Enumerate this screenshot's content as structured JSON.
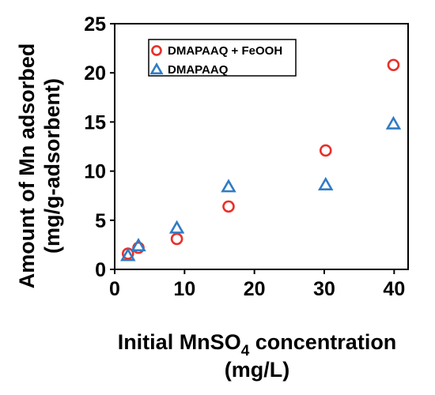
{
  "chart_data": {
    "type": "scatter",
    "xlabel_line1_prefix": "Initial MnSO",
    "xlabel_line1_subscript": "4",
    "xlabel_line1_suffix": " concentration",
    "xlabel_line2": "(mg/L)",
    "ylabel_line1": "Amount of Mn adsorbed",
    "ylabel_line2": "(mg/g-adsorbent)",
    "xlim": [
      0,
      42
    ],
    "ylim": [
      0,
      25
    ],
    "x_ticks": [
      "0",
      "10",
      "20",
      "30",
      "40"
    ],
    "y_ticks": [
      "0",
      "5",
      "10",
      "15",
      "20",
      "25"
    ],
    "grid": false,
    "legend_position": "top-left",
    "series": [
      {
        "name": "DMAPAAQ + FeOOH",
        "marker": "circle",
        "color": "#e8302a",
        "points": [
          {
            "x": 1.9,
            "y": 1.6
          },
          {
            "x": 3.4,
            "y": 2.2
          },
          {
            "x": 8.9,
            "y": 3.1
          },
          {
            "x": 16.3,
            "y": 6.4
          },
          {
            "x": 30.2,
            "y": 12.1
          },
          {
            "x": 39.9,
            "y": 20.8
          }
        ]
      },
      {
        "name": "DMAPAAQ",
        "marker": "triangle",
        "color": "#2f7cc4",
        "points": [
          {
            "x": 1.9,
            "y": 1.4
          },
          {
            "x": 3.4,
            "y": 2.4
          },
          {
            "x": 8.9,
            "y": 4.2
          },
          {
            "x": 16.3,
            "y": 8.4
          },
          {
            "x": 30.2,
            "y": 8.6
          },
          {
            "x": 39.9,
            "y": 14.8
          }
        ]
      }
    ]
  }
}
